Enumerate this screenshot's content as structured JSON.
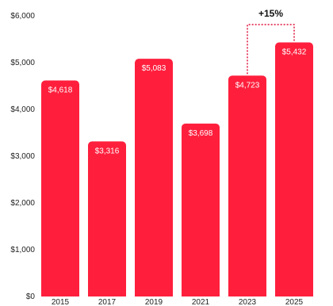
{
  "chart_data": {
    "type": "bar",
    "categories": [
      "2015",
      "2017",
      "2019",
      "2021",
      "2023",
      "2025"
    ],
    "values": [
      4618,
      3316,
      5083,
      3698,
      4723,
      5432
    ],
    "value_labels": [
      "$4,618",
      "$3,316",
      "$5,083",
      "$3,698",
      "$4,723",
      "$5,432"
    ],
    "title": "",
    "xlabel": "",
    "ylabel": "",
    "ylim": [
      0,
      6000
    ],
    "y_ticks": [
      0,
      1000,
      2000,
      3000,
      4000,
      5000,
      6000
    ],
    "y_tick_labels": [
      "$0",
      "$1,000",
      "$2,000",
      "$3,000",
      "$4,000",
      "$5,000",
      "$6,000"
    ],
    "grid": false,
    "legend": "none",
    "bar_color": "#ff1f3d",
    "annotation": {
      "text": "+15%",
      "from_category": "2023",
      "to_category": "2025",
      "color": "#e0103a"
    }
  }
}
